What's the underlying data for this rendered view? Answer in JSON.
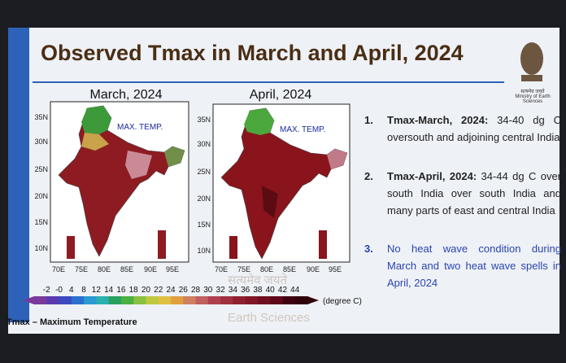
{
  "header": {
    "title": "Observed Tmax in March and April, 2024"
  },
  "logo": {
    "motto": "सत्यमेव जयते",
    "ministry": "Ministry of Earth Sciences"
  },
  "maps": [
    {
      "title": "March, 2024",
      "label": "MAX. TEMP."
    },
    {
      "title": "April, 2024",
      "label": "MAX. TEMP."
    }
  ],
  "lat_labels": [
    "35N",
    "30N",
    "25N",
    "20N",
    "15N",
    "10N"
  ],
  "lon_labels": [
    "70E",
    "75E",
    "80E",
    "85E",
    "90E",
    "95E"
  ],
  "colorbar": {
    "labels": [
      "-2",
      "-0",
      "4",
      "8",
      "12",
      "14",
      "16",
      "18",
      "20",
      "22",
      "24",
      "26",
      "28",
      "30",
      "32",
      "34",
      "36",
      "38",
      "40",
      "42",
      "44"
    ],
    "unit": "(degree C)"
  },
  "points": [
    {
      "number": "1.",
      "heading": "Tmax-March, 2024:",
      "text": "34-40 dg C oversouth and adjoining central India"
    },
    {
      "number": "2.",
      "heading": "Tmax-April, 2024:",
      "text": "34-44 dg C over south India over south India and many parts of east and central India"
    },
    {
      "number": "3.",
      "heading": "",
      "text": "No heat wave condition during March and two heat wave spells in April, 2024"
    }
  ],
  "footer": "Tmax – Maximum Temperature",
  "watermark": {
    "motto": "सत्यमेव जयते",
    "text": "Earth Sciences"
  }
}
